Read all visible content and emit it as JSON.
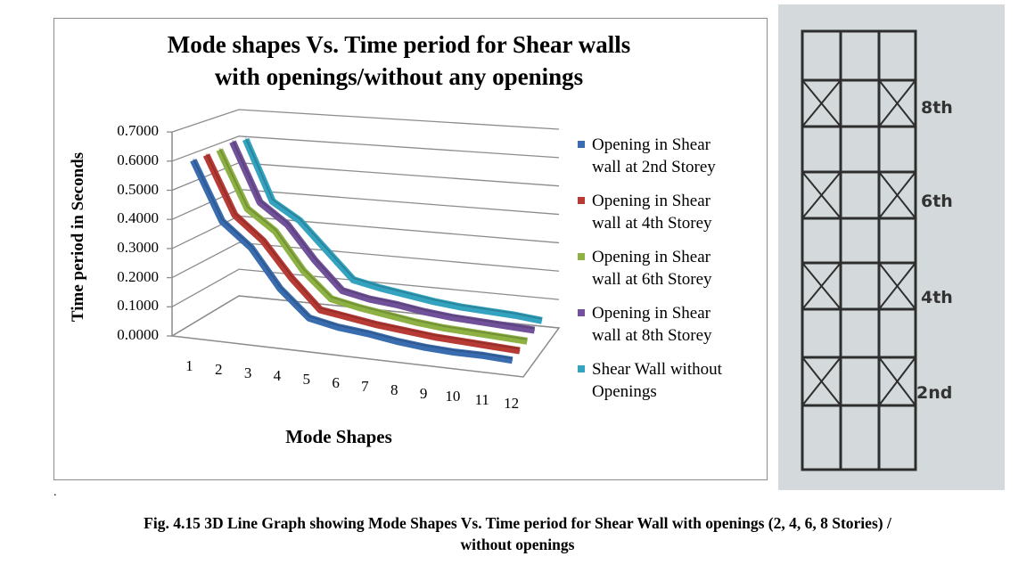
{
  "chart_data": {
    "type": "line",
    "subtype": "3d-line",
    "title_lines": [
      "Mode shapes Vs. Time period for Shear walls",
      "with  openings/without any openings"
    ],
    "xlabel": "Mode Shapes",
    "ylabel": "Time period in Seconds",
    "categories": [
      "1",
      "2",
      "3",
      "4",
      "5",
      "6",
      "7",
      "8",
      "9",
      "10",
      "11",
      "12"
    ],
    "yticks": [
      "0.0000",
      "0.1000",
      "0.2000",
      "0.3000",
      "0.4000",
      "0.5000",
      "0.6000",
      "0.7000"
    ],
    "ylim": [
      0,
      0.7
    ],
    "grid": true,
    "legend_position": "right",
    "series": [
      {
        "name": "Opening in Shear wall at 2nd Storey",
        "name_lines": [
          "Opening in Shear",
          "wall at 2nd Storey"
        ],
        "color": "#3a6db0",
        "values": [
          0.6,
          0.4,
          0.32,
          0.19,
          0.1,
          0.08,
          0.07,
          0.055,
          0.045,
          0.04,
          0.04,
          0.035
        ]
      },
      {
        "name": "Opening in Shear wall at 4th Storey",
        "name_lines": [
          "Opening in Shear",
          "wall at 4th Storey"
        ],
        "color": "#b83a35",
        "values": [
          0.6,
          0.4,
          0.32,
          0.2,
          0.1,
          0.085,
          0.07,
          0.06,
          0.05,
          0.045,
          0.04,
          0.035
        ]
      },
      {
        "name": "Opening in Shear wall at 6th Storey",
        "name_lines": [
          "Opening in Shear",
          "wall at 6th Storey"
        ],
        "color": "#8db142",
        "values": [
          0.6,
          0.4,
          0.33,
          0.2,
          0.11,
          0.09,
          0.075,
          0.06,
          0.05,
          0.045,
          0.04,
          0.035
        ]
      },
      {
        "name": "Opening in Shear wall at 8th Storey",
        "name_lines": [
          "Opening in Shear",
          "wall at 8th Storey"
        ],
        "color": "#71529a",
        "values": [
          0.61,
          0.4,
          0.33,
          0.21,
          0.11,
          0.09,
          0.08,
          0.065,
          0.055,
          0.05,
          0.045,
          0.04
        ]
      },
      {
        "name": "Shear Wall without Openings",
        "name_lines": [
          "Shear Wall without",
          "Openings"
        ],
        "color": "#34a3bf",
        "values": [
          0.6,
          0.38,
          0.32,
          0.22,
          0.12,
          0.1,
          0.085,
          0.07,
          0.06,
          0.055,
          0.05,
          0.04
        ]
      }
    ]
  },
  "dot": ".",
  "caption": [
    "Fig. 4.15 3D Line Graph showing Mode Shapes Vs. Time period for Shear Wall with openings (2, 4, 6, 8 Stories) /",
    "without openings"
  ],
  "photo": {
    "labels": [
      "8th",
      "6th",
      "4th",
      "2nd"
    ]
  }
}
